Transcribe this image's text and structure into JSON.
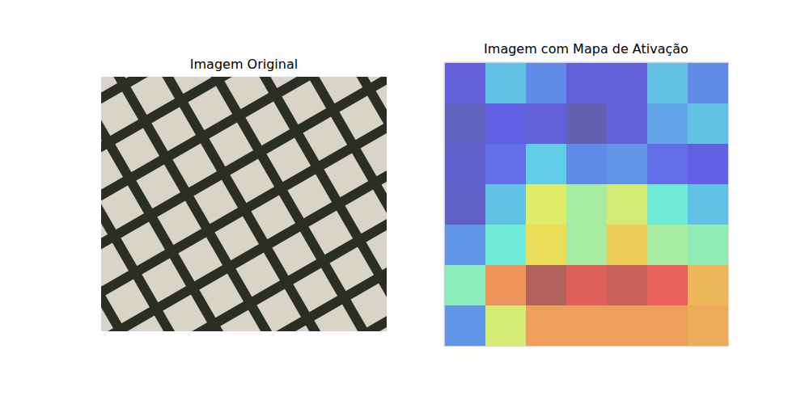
{
  "chart_data": [
    {
      "type": "image",
      "title": "Imagem Original"
    },
    {
      "type": "heatmap",
      "title": "Imagem com Mapa de Ativação",
      "cells": [
        [
          0.1,
          0.3,
          0.2,
          0.1,
          0.1,
          0.3,
          0.2
        ],
        [
          0.05,
          0.12,
          0.1,
          0.03,
          0.1,
          0.25,
          0.3
        ],
        [
          0.08,
          0.15,
          0.32,
          0.2,
          0.22,
          0.15,
          0.12
        ],
        [
          0.07,
          0.3,
          0.6,
          0.5,
          0.58,
          0.4,
          0.3
        ],
        [
          0.22,
          0.4,
          0.65,
          0.5,
          0.68,
          0.5,
          0.46
        ],
        [
          0.45,
          0.78,
          0.98,
          0.9,
          0.94,
          0.88,
          0.72
        ],
        [
          0.22,
          0.58,
          0.76,
          0.76,
          0.76,
          0.76,
          0.74
        ]
      ],
      "color_range": [
        0,
        1
      ],
      "tick_labels": false
    }
  ]
}
